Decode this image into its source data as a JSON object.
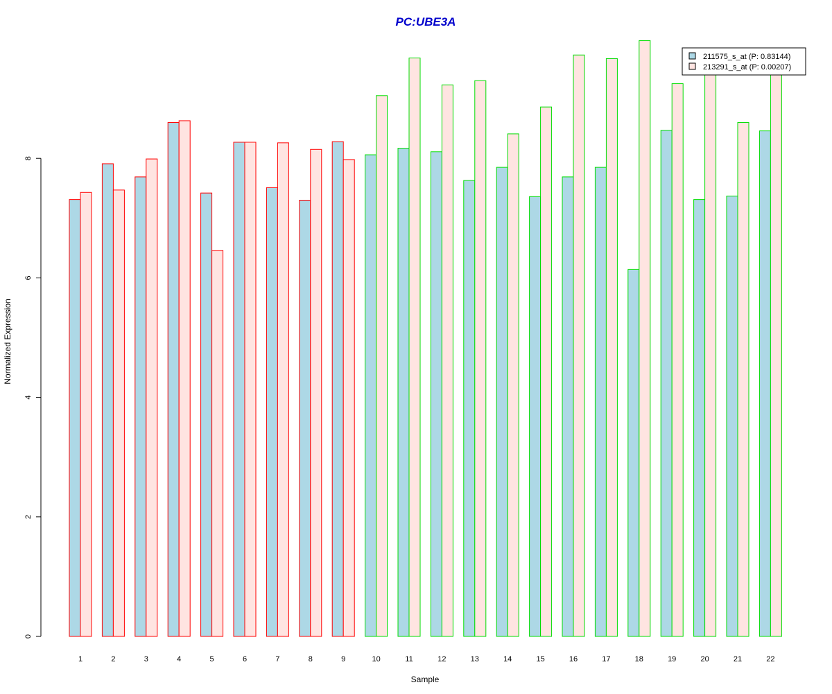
{
  "chart_data": {
    "type": "bar",
    "title": "PC:UBE3A",
    "xlabel": "Sample",
    "ylabel": "Normalized Expression",
    "categories": [
      "1",
      "2",
      "3",
      "4",
      "5",
      "6",
      "7",
      "8",
      "9",
      "10",
      "11",
      "12",
      "13",
      "14",
      "15",
      "16",
      "17",
      "18",
      "19",
      "20",
      "21",
      "22"
    ],
    "series": [
      {
        "name": "211575_s_at (P: 0.83144)",
        "fill": "#add8e6",
        "values": [
          7.31,
          7.91,
          7.69,
          8.6,
          7.42,
          8.27,
          7.51,
          7.3,
          8.28,
          8.06,
          8.17,
          8.11,
          7.63,
          7.85,
          7.36,
          7.69,
          7.85,
          6.14,
          8.47,
          7.31,
          7.37,
          8.46
        ]
      },
      {
        "name": "213291_s_at (P: 0.00207)",
        "fill": "#ffe4e1",
        "values": [
          7.43,
          7.47,
          7.99,
          8.63,
          6.46,
          8.27,
          8.26,
          8.15,
          7.98,
          9.05,
          9.68,
          9.23,
          9.3,
          8.41,
          8.86,
          9.73,
          9.67,
          9.97,
          9.25,
          9.48,
          8.6,
          9.46
        ]
      }
    ],
    "group_border_colors": [
      "#ff0000",
      "#ff0000",
      "#ff0000",
      "#ff0000",
      "#ff0000",
      "#ff0000",
      "#ff0000",
      "#ff0000",
      "#ff0000",
      "#00dd00",
      "#00dd00",
      "#00dd00",
      "#00dd00",
      "#00dd00",
      "#00dd00",
      "#00dd00",
      "#00dd00",
      "#00dd00",
      "#00dd00",
      "#00dd00",
      "#00dd00",
      "#00dd00"
    ],
    "yticks": [
      "0",
      "2",
      "4",
      "6",
      "8"
    ],
    "ylim": [
      0,
      10
    ],
    "grid": false,
    "legend_position": "top-right",
    "colors": {
      "title": "#0000cc",
      "axis": "#000000"
    }
  }
}
